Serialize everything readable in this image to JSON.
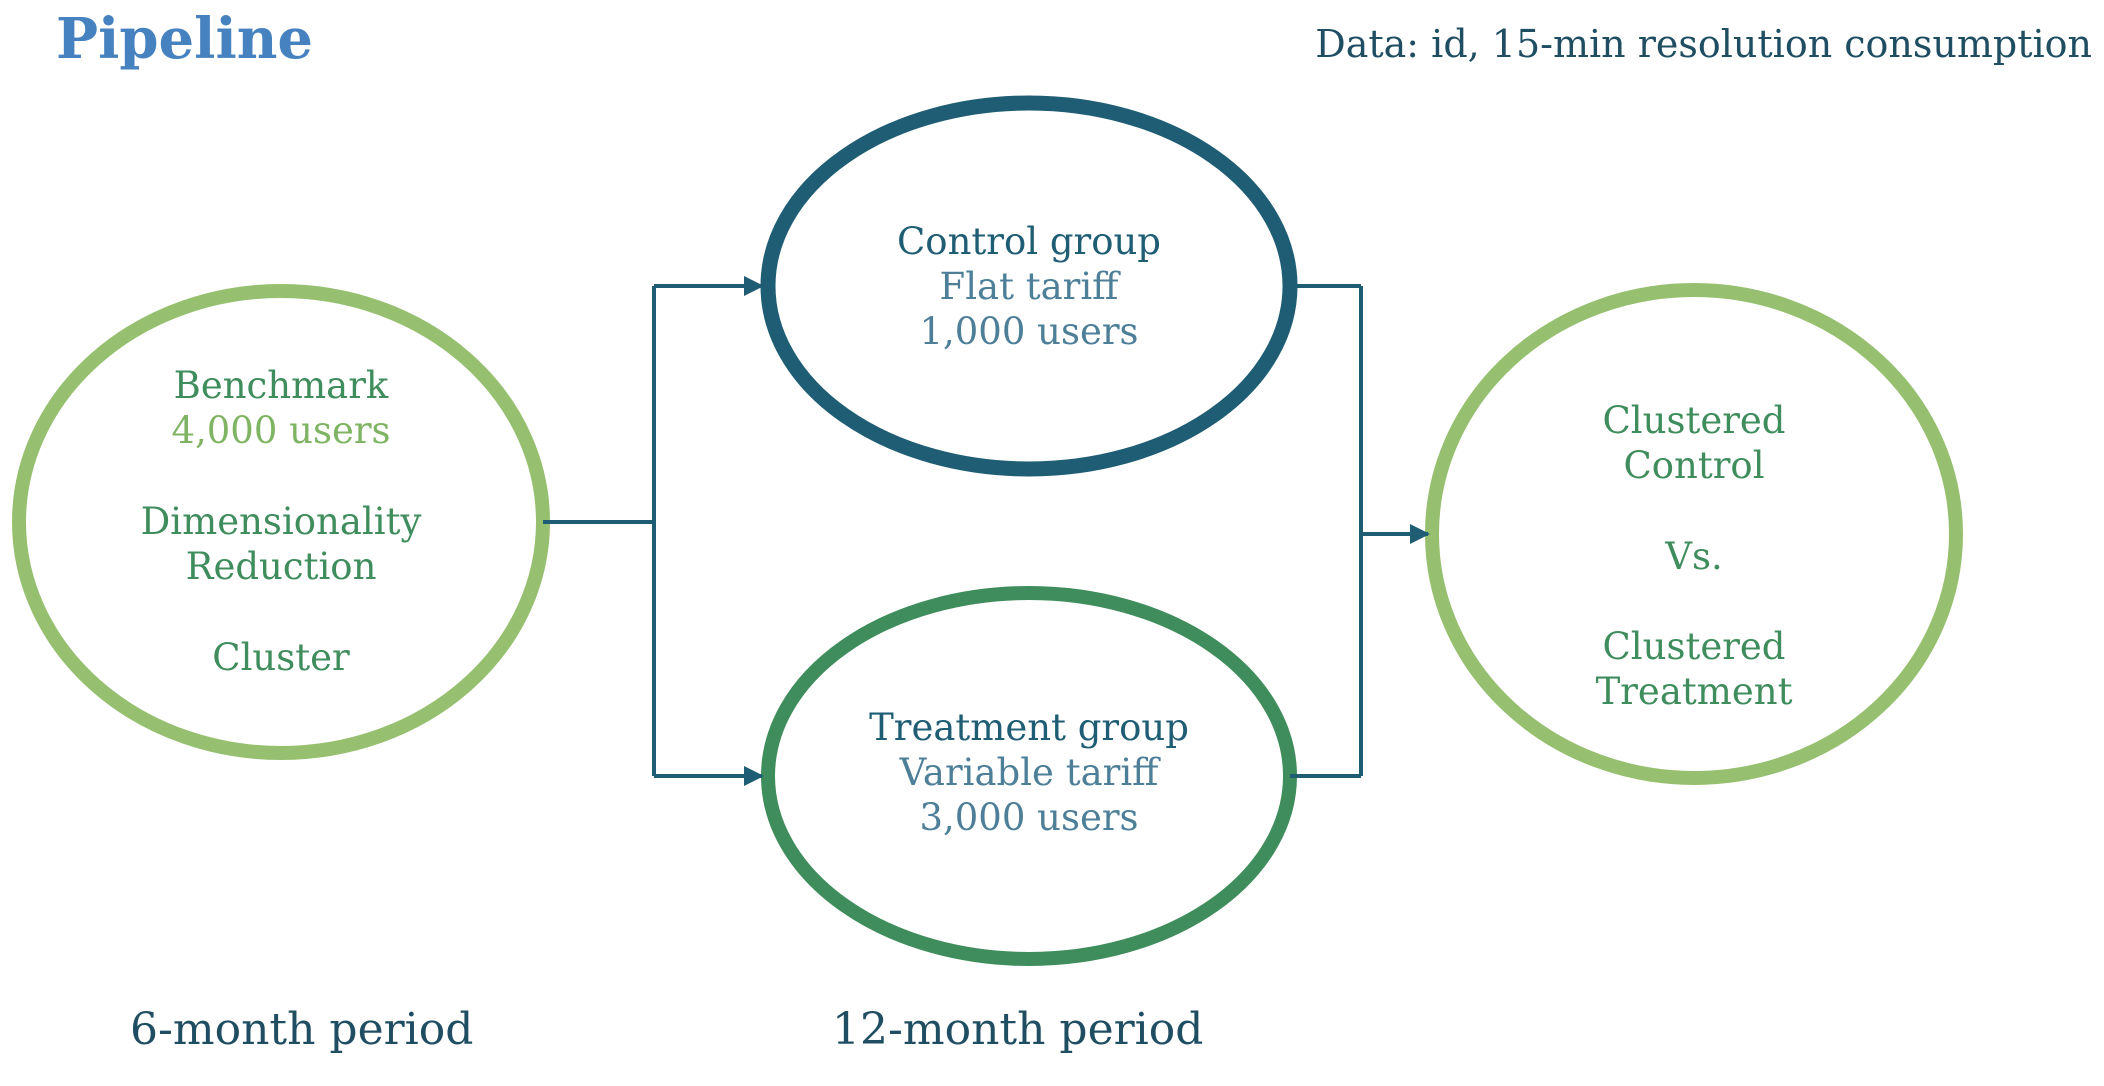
{
  "title": "Pipeline",
  "data_note": "Data:  id, 15-min resolution consumption",
  "nodes": {
    "benchmark": {
      "title": "Benchmark",
      "users": "4,000 users",
      "step1_line1": "Dimensionality",
      "step1_line2": "Reduction",
      "step2": "Cluster"
    },
    "control": {
      "title": "Control group",
      "tariff": "Flat tariff",
      "users": "1,000 users"
    },
    "treatment": {
      "title": "Treatment group",
      "tariff": "Variable tariff",
      "users": "3,000 users"
    },
    "comparison": {
      "line1": "Clustered",
      "line2": "Control",
      "vs": "Vs.",
      "line3": "Clustered",
      "line4": "Treatment"
    }
  },
  "periods": {
    "first": "6-month period",
    "second": "12-month period"
  },
  "colors": {
    "title": "#4682c0",
    "navy": "#1e5d74",
    "dark_green": "#3f8d5c",
    "light_green": "#96c06f",
    "connector": "#1e5d74"
  }
}
